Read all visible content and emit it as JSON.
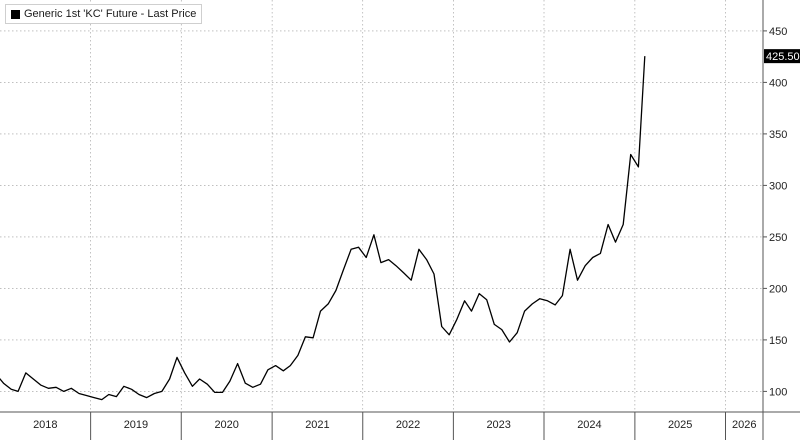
{
  "chart_data": {
    "type": "line",
    "title": "",
    "legend": "top-left",
    "legend_entries": [
      "Generic 1st 'KC' Future - Last Price"
    ],
    "last_value_label": "425.50",
    "xlabel": "",
    "ylabel": "",
    "x_ticks": [
      "2018",
      "2019",
      "2020",
      "2021",
      "2022",
      "2023",
      "2024",
      "2025",
      "2026"
    ],
    "y_ticks": [
      100,
      150,
      200,
      250,
      300,
      350,
      400,
      450
    ],
    "xlim": [
      "2018-01-01",
      "2026-06-01"
    ],
    "ylim": [
      80,
      480
    ],
    "grid": true,
    "series": [
      {
        "name": "Generic 1st 'KC' Future - Last Price",
        "color": "#000000",
        "x": [
          "2017-11-15",
          "2017-12-15",
          "2018-01-15",
          "2018-02-15",
          "2018-03-15",
          "2018-04-15",
          "2018-05-15",
          "2018-06-15",
          "2018-07-15",
          "2018-08-15",
          "2018-09-15",
          "2018-10-15",
          "2018-11-15",
          "2018-12-15",
          "2019-01-15",
          "2019-02-15",
          "2019-03-15",
          "2019-04-15",
          "2019-05-15",
          "2019-06-15",
          "2019-07-15",
          "2019-08-15",
          "2019-09-15",
          "2019-10-15",
          "2019-11-15",
          "2019-12-15",
          "2020-01-15",
          "2020-02-15",
          "2020-03-15",
          "2020-04-15",
          "2020-05-15",
          "2020-06-15",
          "2020-07-15",
          "2020-08-15",
          "2020-09-15",
          "2020-10-15",
          "2020-11-15",
          "2020-12-15",
          "2021-01-15",
          "2021-02-15",
          "2021-03-15",
          "2021-04-15",
          "2021-05-15",
          "2021-06-15",
          "2021-07-15",
          "2021-08-15",
          "2021-09-15",
          "2021-10-15",
          "2021-11-15",
          "2021-12-15",
          "2022-01-15",
          "2022-02-15",
          "2022-03-15",
          "2022-04-15",
          "2022-05-15",
          "2022-06-15",
          "2022-07-15",
          "2022-08-15",
          "2022-09-15",
          "2022-10-15",
          "2022-11-15",
          "2022-12-15",
          "2023-01-15",
          "2023-02-15",
          "2023-03-15",
          "2023-04-15",
          "2023-05-15",
          "2023-06-15",
          "2023-07-15",
          "2023-08-15",
          "2023-09-15",
          "2023-10-15",
          "2023-11-15",
          "2023-12-15",
          "2024-01-15",
          "2024-02-15",
          "2024-03-15",
          "2024-04-15",
          "2024-05-15",
          "2024-06-15",
          "2024-07-15",
          "2024-08-15",
          "2024-09-15",
          "2024-10-15",
          "2024-11-15",
          "2024-12-15",
          "2025-01-15",
          "2025-02-10"
        ],
        "values": [
          121,
          117,
          108,
          102,
          100,
          118,
          112,
          106,
          103,
          104,
          100,
          103,
          98,
          96,
          94,
          92,
          97,
          95,
          105,
          102,
          97,
          94,
          98,
          100,
          112,
          133,
          118,
          105,
          112,
          107,
          99,
          99,
          110,
          127,
          108,
          104,
          107,
          121,
          125,
          120,
          125,
          135,
          153,
          152,
          178,
          185,
          198,
          218,
          238,
          240,
          230,
          252,
          225,
          228,
          222,
          215,
          208,
          238,
          228,
          214,
          163,
          155,
          170,
          188,
          178,
          195,
          189,
          165,
          160,
          148,
          157,
          178,
          185,
          190,
          188,
          184,
          193,
          238,
          208,
          222,
          230,
          234,
          262,
          245,
          262,
          330,
          318,
          425.5
        ]
      }
    ]
  }
}
